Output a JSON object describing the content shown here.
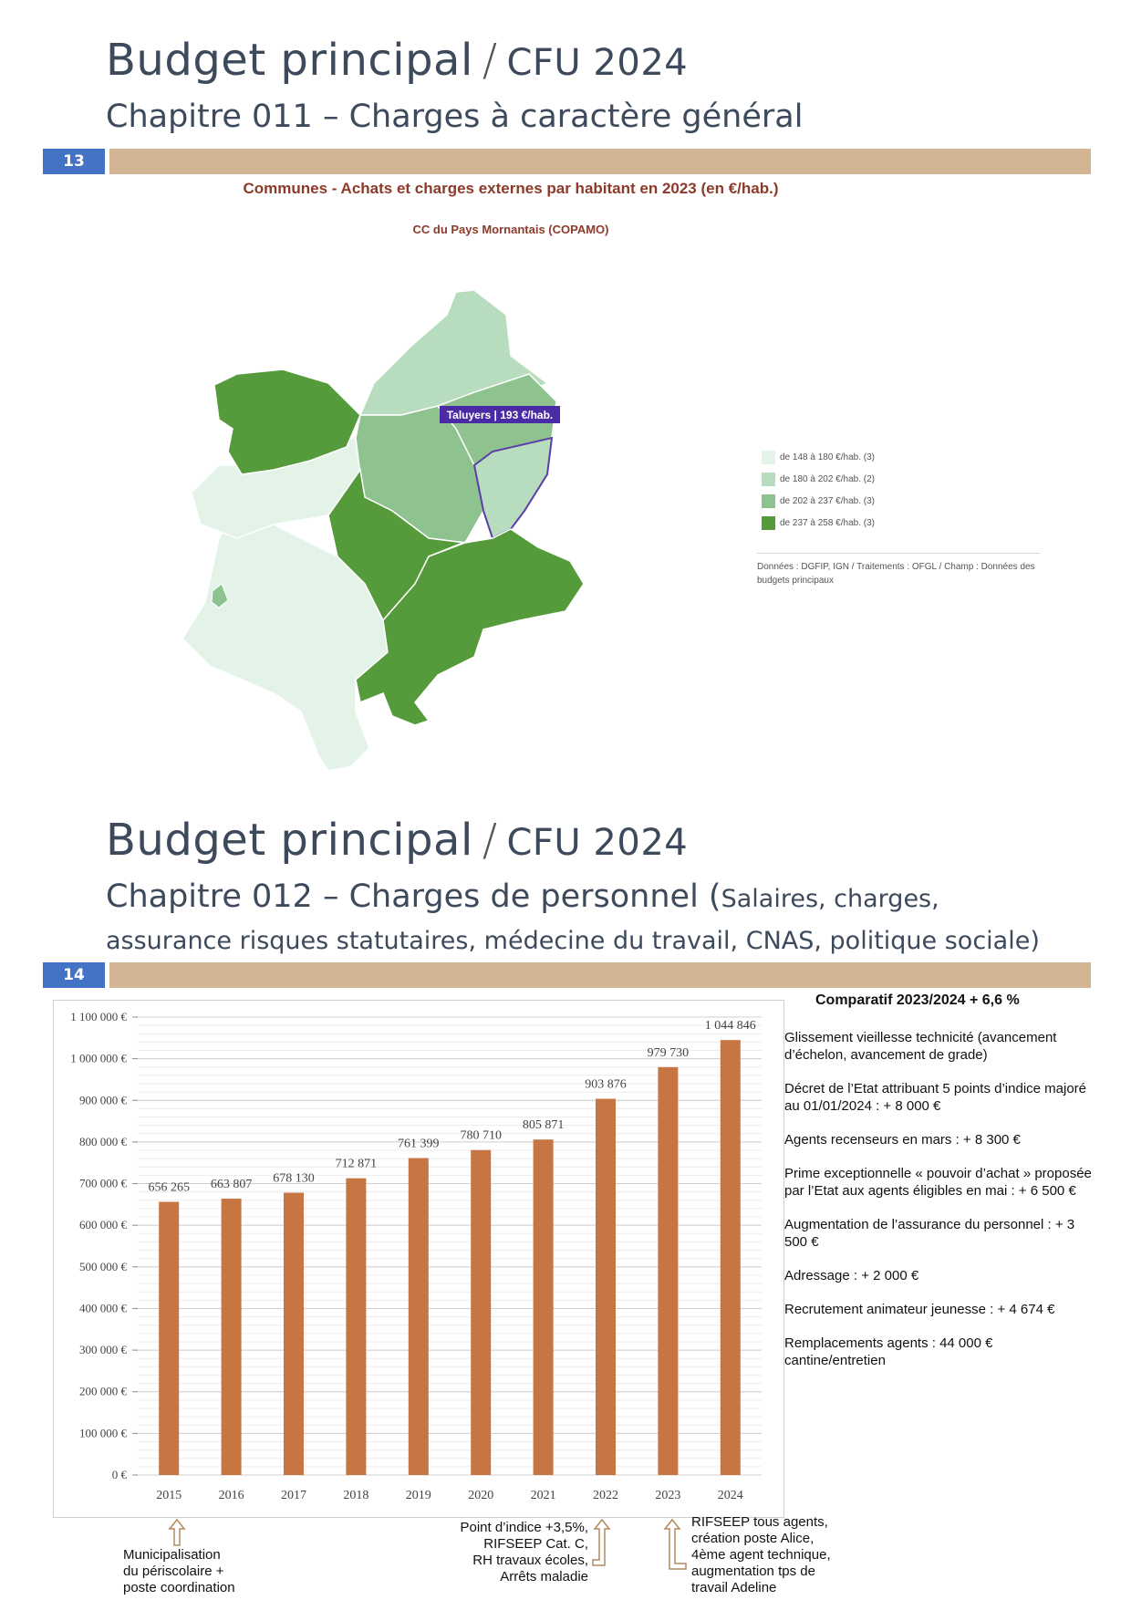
{
  "slide13": {
    "title_main": "Budget principal",
    "title_sep": "/",
    "title_cfu": "CFU 2024",
    "subtitle": "Chapitre 011 – Charges à caractère général",
    "page_number": "13",
    "map_title": "Communes - Achats et charges externes par habitant en 2023 (en €/hab.)",
    "map_subtitle": "CC du Pays Mornantais (COPAMO)",
    "map_callout": "Taluyers | 193 €/hab.",
    "legend": [
      {
        "label": "de 148 à 180 €/hab. (3)",
        "color": "#e3f3e8"
      },
      {
        "label": "de 180 à 202 €/hab. (2)",
        "color": "#b7ddbe"
      },
      {
        "label": "de 202 à 237 €/hab. (3)",
        "color": "#8ec28f"
      },
      {
        "label": "de 237 à 258 €/hab. (3)",
        "color": "#559b3c"
      }
    ],
    "source_line1": "Données : DGFIP, IGN / Traitements : OFGL / Champ : Données des",
    "source_line2": "budgets principaux"
  },
  "slide14": {
    "title_main": "Budget principal",
    "title_sep": "/",
    "title_cfu": "CFU 2024",
    "subtitle_main": "Chapitre 012 – Charges de personnel (",
    "subtitle_tail": "Salaires, charges,",
    "subtitle_line2": "assurance risques statutaires, médecine du travail, CNAS, politique sociale)",
    "page_number": "14",
    "comparatif": "Comparatif  2023/2024 + 6,6 %",
    "annotations": [
      "Glissement vieillesse technicité (avancement d’échelon, avancement de grade)",
      "Décret de l’Etat attribuant 5 points d’indice majoré au 01/01/2024 : + 8 000 €",
      "Agents recenseurs en mars : + 8 300 €",
      "Prime exceptionnelle « pouvoir d’achat » proposée par l’Etat aux agents éligibles en mai : + 6 500 €",
      "Augmentation de l’assurance du personnel : + 3 500 €",
      "Adressage : + 2 000 €",
      "Recrutement animateur jeunesse : + 4 674 €",
      "Remplacements agents : 44 000 € cantine/entretien"
    ],
    "footnote_2015": [
      "Municipalisation",
      "du périscolaire +",
      "poste coordination"
    ],
    "footnote_2022": [
      "Point d’indice +3,5%,",
      "RIFSEEP Cat. C,",
      "RH travaux écoles,",
      "Arrêts maladie"
    ],
    "footnote_2023": [
      "RIFSEEP tous agents,",
      "création poste Alice,",
      "4ème agent technique,",
      "augmentation tps de",
      "travail Adeline"
    ]
  },
  "chart_data": {
    "type": "bar",
    "categories": [
      "2015",
      "2016",
      "2017",
      "2018",
      "2019",
      "2020",
      "2021",
      "2022",
      "2023",
      "2024"
    ],
    "values": [
      656265,
      663807,
      678130,
      712871,
      761399,
      780710,
      805871,
      903876,
      979730,
      1044846
    ],
    "value_labels": [
      "656 265",
      "663 807",
      "678 130",
      "712 871",
      "761 399",
      "780 710",
      "805 871",
      "903 876",
      "979 730",
      "1 044 846"
    ],
    "ylim": [
      0,
      1100000
    ],
    "y_ticks": [
      "0 €",
      "100 000 €",
      "200 000 €",
      "300 000 €",
      "400 000 €",
      "500 000 €",
      "600 000 €",
      "700 000 €",
      "800 000 €",
      "900 000 €",
      "1 000 000 €",
      "1 100 000 €"
    ],
    "bar_color": "#c87544",
    "grid": true
  }
}
